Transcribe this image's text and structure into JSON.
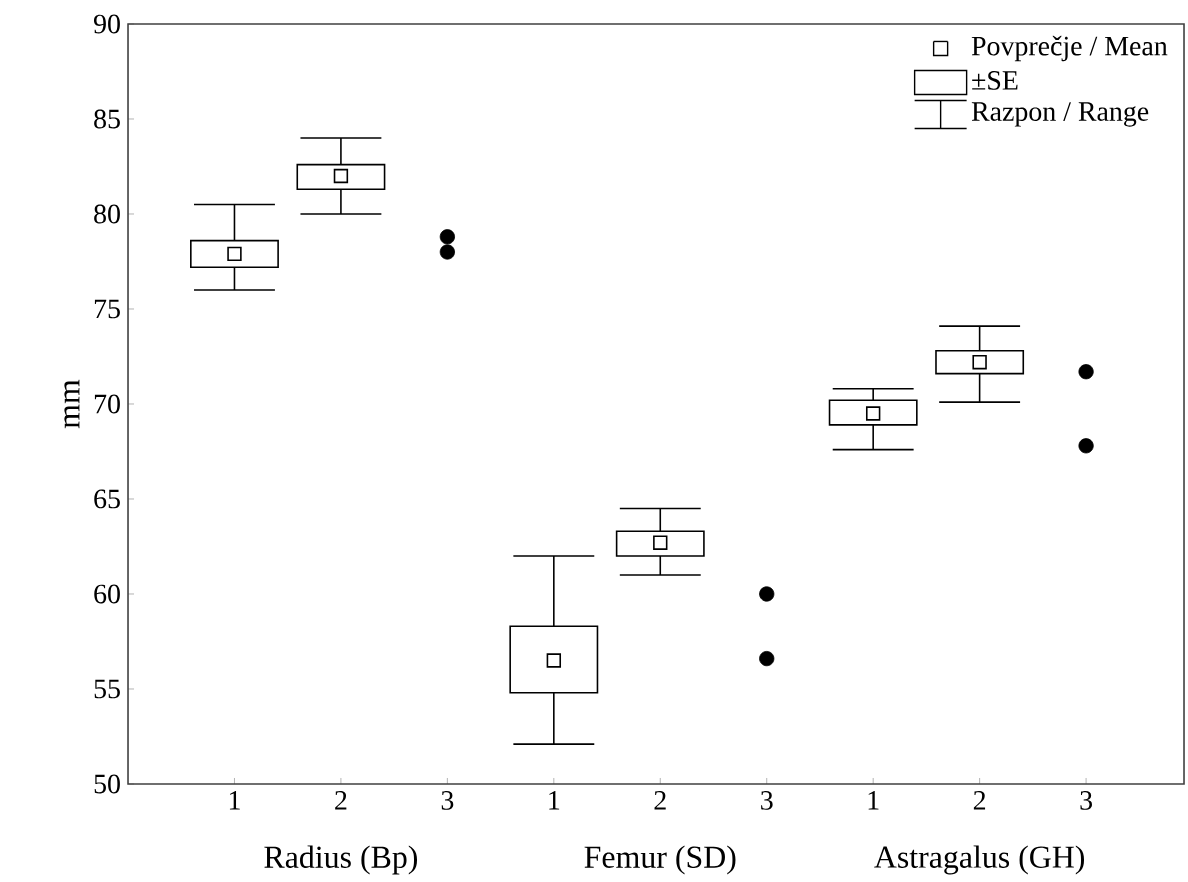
{
  "chart_data": {
    "type": "box",
    "ylabel": "mm",
    "categories": [
      "1",
      "2",
      "3",
      "1",
      "2",
      "3",
      "1",
      "2",
      "3"
    ],
    "ylim": [
      50,
      90
    ],
    "yticks": [
      50,
      55,
      60,
      65,
      70,
      75,
      80,
      85,
      90
    ],
    "series": [
      {
        "color": "#000000",
        "boxes": [
          {
            "low": 76,
            "q1": 77.2,
            "q3": 78.6,
            "high": 80.5,
            "mean": 77.9
          },
          {
            "low": 80,
            "q1": 81.3,
            "q3": 82.6,
            "high": 84,
            "mean": 82
          },
          null,
          {
            "low": 52.1,
            "q1": 54.8,
            "q3": 58.3,
            "high": 62,
            "mean": 56.5
          },
          {
            "low": 61,
            "q1": 62,
            "q3": 63.3,
            "high": 64.5,
            "mean": 62.7
          },
          null,
          {
            "low": 67.6,
            "q1": 68.9,
            "q3": 70.2,
            "high": 70.8,
            "mean": 69.5
          },
          {
            "low": 70.1,
            "q1": 71.6,
            "q3": 72.8,
            "high": 74.1,
            "mean": 72.2
          },
          null
        ]
      },
      {
        "type": "scatter",
        "color": "#000000",
        "marker": "circle",
        "values": [
          null,
          null,
          78.8,
          null,
          null,
          60,
          null,
          null,
          71.7
        ]
      },
      {
        "type": "scatter",
        "color": "#000000",
        "marker": "circle",
        "values": [
          null,
          null,
          78,
          null,
          null,
          56.6,
          null,
          null,
          67.8
        ]
      }
    ],
    "annotations": [
      "Radius (Bp)",
      "Femur (SD)",
      "Astragalus (GH)",
      "Povprečje / Mean",
      "±SE",
      "Razpon / Range"
    ]
  }
}
